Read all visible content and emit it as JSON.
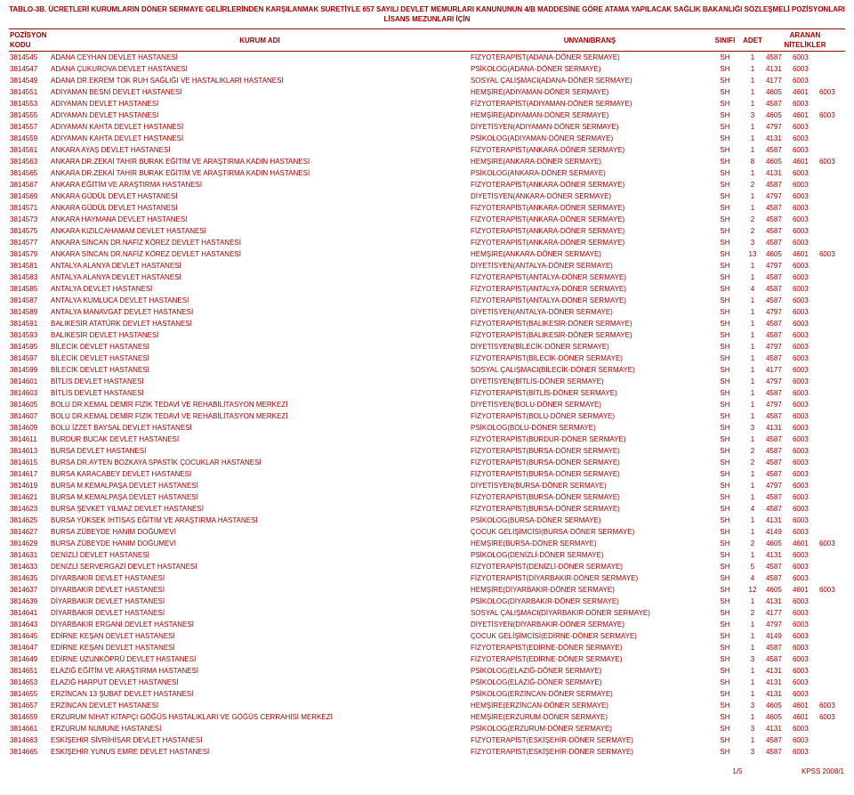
{
  "title": "TABLO-3B. ÜCRETLERİ KURUMLARIN DÖNER SERMAYE GELİRLERİNDEN KARŞILANMAK SURETİYLE 657 SAYILI DEVLET MEMURLARI KANUNUNUN 4/B MADDESİNE GÖRE ATAMA YAPILACAK SAĞLIK BAKANLIĞI SÖZLEŞMELİ POZİSYONLARI",
  "subtitle": "LİSANS MEZUNLARI İÇİN",
  "headers": {
    "kod1": "POZİSYON",
    "kod2": "KODU",
    "kurum": "KURUM ADI",
    "unvan": "UNVAN/BRANŞ",
    "sinif": "SINIFI",
    "adet": "ADET",
    "nitelik1": "ARANAN",
    "nitelik2": "NİTELİKLER"
  },
  "footer": {
    "page": "1/5",
    "kpss": "KPSS 2008/1"
  },
  "rows": [
    [
      "3814545",
      "ADANA CEYHAN DEVLET HASTANESİ",
      "FİZYOTERAPİST(ADANA-DÖNER SERMAYE)",
      "SH",
      "1",
      "4587",
      "6003",
      ""
    ],
    [
      "3814547",
      "ADANA ÇUKUROVA DEVLET HASTANESİ",
      "PSİKOLOG(ADANA-DÖNER SERMAYE)",
      "SH",
      "1",
      "4131",
      "6003",
      ""
    ],
    [
      "3814549",
      "ADANA DR.EKREM TOK RUH SAĞLIĞI VE HASTALIKLARI HASTANESİ",
      "SOSYAL ÇALIŞMACI(ADANA-DÖNER SERMAYE)",
      "SH",
      "1",
      "4177",
      "6003",
      ""
    ],
    [
      "3814551",
      "ADIYAMAN BESNİ DEVLET HASTANESİ",
      "HEMŞİRE(ADIYAMAN-DÖNER SERMAYE)",
      "SH",
      "1",
      "4605",
      "4601",
      "6003"
    ],
    [
      "3814553",
      "ADIYAMAN DEVLET HASTANESİ",
      "FİZYOTERAPİST(ADIYAMAN-DÖNER SERMAYE)",
      "SH",
      "1",
      "4587",
      "6003",
      ""
    ],
    [
      "3814555",
      "ADIYAMAN DEVLET HASTANESİ",
      "HEMŞİRE(ADIYAMAN-DÖNER SERMAYE)",
      "SH",
      "3",
      "4605",
      "4601",
      "6003"
    ],
    [
      "3814557",
      "ADIYAMAN KAHTA DEVLET HASTANESİ",
      "DİYETİSYEN(ADIYAMAN-DÖNER SERMAYE)",
      "SH",
      "1",
      "4797",
      "6003",
      ""
    ],
    [
      "3814559",
      "ADIYAMAN KAHTA DEVLET HASTANESİ",
      "PSİKOLOG(ADIYAMAN-DÖNER SERMAYE)",
      "SH",
      "1",
      "4131",
      "6003",
      ""
    ],
    [
      "3814561",
      "ANKARA AYAŞ DEVLET HASTANESİ",
      "FİZYOTERAPİST(ANKARA-DÖNER SERMAYE)",
      "SH",
      "1",
      "4587",
      "6003",
      ""
    ],
    [
      "3814563",
      "ANKARA DR.ZEKAİ TAHİR BURAK EĞİTİM VE ARAŞTIRMA KADIN HASTANESİ",
      "HEMŞİRE(ANKARA-DÖNER SERMAYE)",
      "SH",
      "8",
      "4605",
      "4601",
      "6003"
    ],
    [
      "3814565",
      "ANKARA DR.ZEKAİ TAHİR BURAK EĞİTİM VE ARAŞTIRMA KADIN HASTANESİ",
      "PSİKOLOG(ANKARA-DÖNER SERMAYE)",
      "SH",
      "1",
      "4131",
      "6003",
      ""
    ],
    [
      "3814567",
      "ANKARA EĞİTİM VE ARAŞTIRMA HASTANESİ",
      "FİZYOTERAPİST(ANKARA-DÖNER SERMAYE)",
      "SH",
      "2",
      "4587",
      "6003",
      ""
    ],
    [
      "3814569",
      "ANKARA GÜDÜL DEVLET HASTANESİ",
      "DİYETİSYEN(ANKARA-DÖNER SERMAYE)",
      "SH",
      "1",
      "4797",
      "6003",
      ""
    ],
    [
      "3814571",
      "ANKARA GÜDÜL DEVLET HASTANESİ",
      "FİZYOTERAPİST(ANKARA-DÖNER SERMAYE)",
      "SH",
      "1",
      "4587",
      "6003",
      ""
    ],
    [
      "3814573",
      "ANKARA HAYMANA DEVLET HASTANESİ",
      "FİZYOTERAPİST(ANKARA-DÖNER SERMAYE)",
      "SH",
      "2",
      "4587",
      "6003",
      ""
    ],
    [
      "3814575",
      "ANKARA KIZILCAHAMAM DEVLET HASTANESİ",
      "FİZYOTERAPİST(ANKARA-DÖNER SERMAYE)",
      "SH",
      "2",
      "4587",
      "6003",
      ""
    ],
    [
      "3814577",
      "ANKARA SİNCAN DR.NAFİZ KÖREZ DEVLET HASTANESİ",
      "FİZYOTERAPİST(ANKARA-DÖNER SERMAYE)",
      "SH",
      "3",
      "4587",
      "6003",
      ""
    ],
    [
      "3814579",
      "ANKARA SİNCAN DR.NAFİZ KÖREZ DEVLET HASTANESİ",
      "HEMŞİRE(ANKARA-DÖNER SERMAYE)",
      "SH",
      "13",
      "4605",
      "4601",
      "6003"
    ],
    [
      "3814581",
      "ANTALYA ALANYA DEVLET HASTANESİ",
      "DİYETİSYEN(ANTALYA-DÖNER SERMAYE)",
      "SH",
      "1",
      "4797",
      "6003",
      ""
    ],
    [
      "3814583",
      "ANTALYA ALANYA DEVLET HASTANESİ",
      "FİZYOTERAPİST(ANTALYA-DÖNER SERMAYE)",
      "SH",
      "1",
      "4587",
      "6003",
      ""
    ],
    [
      "3814585",
      "ANTALYA DEVLET HASTANESİ",
      "FİZYOTERAPİST(ANTALYA-DÖNER SERMAYE)",
      "SH",
      "4",
      "4587",
      "6003",
      ""
    ],
    [
      "3814587",
      "ANTALYA KUMLUCA DEVLET HASTANESİ",
      "FİZYOTERAPİST(ANTALYA-DÖNER SERMAYE)",
      "SH",
      "1",
      "4587",
      "6003",
      ""
    ],
    [
      "3814589",
      "ANTALYA MANAVGAT DEVLET HASTANESİ",
      "DİYETİSYEN(ANTALYA-DÖNER SERMAYE)",
      "SH",
      "1",
      "4797",
      "6003",
      ""
    ],
    [
      "3814591",
      "BALIKESİR ATATÜRK DEVLET HASTANESİ",
      "FİZYOTERAPİST(BALIKESİR-DÖNER SERMAYE)",
      "SH",
      "1",
      "4587",
      "6003",
      ""
    ],
    [
      "3814593",
      "BALIKESİR DEVLET HASTANESİ",
      "FİZYOTERAPİST(BALIKESİR-DÖNER SERMAYE)",
      "SH",
      "1",
      "4587",
      "6003",
      ""
    ],
    [
      "3814595",
      "BİLECİK DEVLET HASTANESİ",
      "DİYETİSYEN(BİLECİK-DÖNER SERMAYE)",
      "SH",
      "1",
      "4797",
      "6003",
      ""
    ],
    [
      "3814597",
      "BİLECİK DEVLET HASTANESİ",
      "FİZYOTERAPİST(BİLECİK-DÖNER SERMAYE)",
      "SH",
      "1",
      "4587",
      "6003",
      ""
    ],
    [
      "3814599",
      "BİLECİK DEVLET HASTANESİ",
      "SOSYAL ÇALIŞMACI(BİLECİK-DÖNER SERMAYE)",
      "SH",
      "1",
      "4177",
      "6003",
      ""
    ],
    [
      "3814601",
      "BİTLİS DEVLET HASTANESİ",
      "DİYETİSYEN(BİTLİS-DÖNER SERMAYE)",
      "SH",
      "1",
      "4797",
      "6003",
      ""
    ],
    [
      "3814603",
      "BİTLİS DEVLET HASTANESİ",
      "FİZYOTERAPİST(BİTLİS-DÖNER SERMAYE)",
      "SH",
      "1",
      "4587",
      "6003",
      ""
    ],
    [
      "3814605",
      "BOLU DR.KEMAL DEMİR FİZİK TEDAVİ VE REHABİLİTASYON MERKEZİ",
      "DİYETİSYEN(BOLU-DÖNER SERMAYE)",
      "SH",
      "1",
      "4797",
      "6003",
      ""
    ],
    [
      "3814607",
      "BOLU DR.KEMAL DEMİR FİZİK TEDAVİ VE REHABİLİTASYON MERKEZİ",
      "FİZYOTERAPİST(BOLU-DÖNER SERMAYE)",
      "SH",
      "1",
      "4587",
      "6003",
      ""
    ],
    [
      "3814609",
      "BOLU İZZET BAYSAL DEVLET HASTANESİ",
      "PSİKOLOG(BOLU-DÖNER SERMAYE)",
      "SH",
      "3",
      "4131",
      "6003",
      ""
    ],
    [
      "3814611",
      "BURDUR BUCAK DEVLET HASTANESİ",
      "FİZYOTERAPİST(BURDUR-DÖNER SERMAYE)",
      "SH",
      "1",
      "4587",
      "6003",
      ""
    ],
    [
      "3814613",
      "BURSA DEVLET HASTANESİ",
      "FİZYOTERAPİST(BURSA-DÖNER SERMAYE)",
      "SH",
      "2",
      "4587",
      "6003",
      ""
    ],
    [
      "3814615",
      "BURSA DR.AYTEN BOZKAYA SPASTİK ÇOCUKLAR HASTANESİ",
      "FİZYOTERAPİST(BURSA-DÖNER SERMAYE)",
      "SH",
      "2",
      "4587",
      "6003",
      ""
    ],
    [
      "3814617",
      "BURSA KARACABEY DEVLET HASTANESİ",
      "FİZYOTERAPİST(BURSA-DÖNER SERMAYE)",
      "SH",
      "1",
      "4587",
      "6003",
      ""
    ],
    [
      "3814619",
      "BURSA M.KEMALPAŞA DEVLET HASTANESİ",
      "DİYETİSYEN(BURSA-DÖNER SERMAYE)",
      "SH",
      "1",
      "4797",
      "6003",
      ""
    ],
    [
      "3814621",
      "BURSA M.KEMALPAŞA DEVLET HASTANESİ",
      "FİZYOTERAPİST(BURSA-DÖNER SERMAYE)",
      "SH",
      "1",
      "4587",
      "6003",
      ""
    ],
    [
      "3814623",
      "BURSA ŞEVKET YILMAZ DEVLET HASTANESİ",
      "FİZYOTERAPİST(BURSA-DÖNER SERMAYE)",
      "SH",
      "4",
      "4587",
      "6003",
      ""
    ],
    [
      "3814625",
      "BURSA YÜKSEK İHTİSAS EĞİTİM VE ARAŞTIRMA HASTANESİ",
      "PSİKOLOG(BURSA-DÖNER SERMAYE)",
      "SH",
      "1",
      "4131",
      "6003",
      ""
    ],
    [
      "3814627",
      "BURSA ZÜBEYDE HANIM DOĞUMEVİ",
      "ÇOCUK GELİŞİMCİSİ(BURSA-DÖNER SERMAYE)",
      "SH",
      "1",
      "4149",
      "6003",
      ""
    ],
    [
      "3814629",
      "BURSA ZÜBEYDE HANIM DOĞUMEVİ",
      "HEMŞİRE(BURSA-DÖNER SERMAYE)",
      "SH",
      "2",
      "4605",
      "4601",
      "6003"
    ],
    [
      "3814631",
      "DENİZLİ DEVLET HASTANESİ",
      "PSİKOLOG(DENİZLİ-DÖNER SERMAYE)",
      "SH",
      "1",
      "4131",
      "6003",
      ""
    ],
    [
      "3814633",
      "DENİZLİ SERVERGAZİ DEVLET HASTANESİ",
      "FİZYOTERAPİST(DENİZLİ-DÖNER SERMAYE)",
      "SH",
      "5",
      "4587",
      "6003",
      ""
    ],
    [
      "3814635",
      "DİYARBAKIR DEVLET HASTANESİ",
      "FİZYOTERAPİST(DİYARBAKIR-DÖNER SERMAYE)",
      "SH",
      "4",
      "4587",
      "6003",
      ""
    ],
    [
      "3814637",
      "DİYARBAKIR DEVLET HASTANESİ",
      "HEMŞİRE(DİYARBAKIR-DÖNER SERMAYE)",
      "SH",
      "12",
      "4605",
      "4601",
      "6003"
    ],
    [
      "3814639",
      "DİYARBAKIR DEVLET HASTANESİ",
      "PSİKOLOG(DİYARBAKIR-DÖNER SERMAYE)",
      "SH",
      "1",
      "4131",
      "6003",
      ""
    ],
    [
      "3814641",
      "DİYARBAKIR DEVLET HASTANESİ",
      "SOSYAL ÇALIŞMACI(DİYARBAKIR-DÖNER SERMAYE)",
      "SH",
      "2",
      "4177",
      "6003",
      ""
    ],
    [
      "3814643",
      "DİYARBAKIR ERGANİ DEVLET HASTANESİ",
      "DİYETİSYEN(DİYARBAKIR-DÖNER SERMAYE)",
      "SH",
      "1",
      "4797",
      "6003",
      ""
    ],
    [
      "3814645",
      "EDİRNE KEŞAN DEVLET HASTANESİ",
      "ÇOCUK GELİŞİMCİSİ(EDİRNE-DÖNER SERMAYE)",
      "SH",
      "1",
      "4149",
      "6003",
      ""
    ],
    [
      "3814647",
      "EDİRNE KEŞAN DEVLET HASTANESİ",
      "FİZYOTERAPİST(EDİRNE-DÖNER SERMAYE)",
      "SH",
      "1",
      "4587",
      "6003",
      ""
    ],
    [
      "3814649",
      "EDİRNE UZUNKÖPRÜ DEVLET HASTANESİ",
      "FİZYOTERAPİST(EDİRNE-DÖNER SERMAYE)",
      "SH",
      "3",
      "4587",
      "6003",
      ""
    ],
    [
      "3814651",
      "ELAZIĞ EĞİTİM VE ARAŞTIRMA HASTANESİ",
      "PSİKOLOG(ELAZIĞ-DÖNER SERMAYE)",
      "SH",
      "1",
      "4131",
      "6003",
      ""
    ],
    [
      "3814653",
      "ELAZIĞ HARPUT DEVLET HASTANESİ",
      "PSİKOLOG(ELAZIĞ-DÖNER SERMAYE)",
      "SH",
      "1",
      "4131",
      "6003",
      ""
    ],
    [
      "3814655",
      "ERZİNCAN 13 ŞUBAT DEVLET HASTANESİ",
      "PSİKOLOG(ERZİNCAN-DÖNER SERMAYE)",
      "SH",
      "1",
      "4131",
      "6003",
      ""
    ],
    [
      "3814657",
      "ERZİNCAN DEVLET HASTANESİ",
      "HEMŞİRE(ERZİNCAN-DÖNER SERMAYE)",
      "SH",
      "3",
      "4605",
      "4601",
      "6003"
    ],
    [
      "3814659",
      "ERZURUM NİHAT KİTAPÇI GÖĞÜS HASTALIKLARI VE GÖĞÜS CERRAHİSİ MERKEZİ",
      "HEMŞİRE(ERZURUM-DÖNER SERMAYE)",
      "SH",
      "1",
      "4605",
      "4601",
      "6003"
    ],
    [
      "3814661",
      "ERZURUM NUMUNE HASTANESİ",
      "PSİKOLOG(ERZURUM-DÖNER SERMAYE)",
      "SH",
      "3",
      "4131",
      "6003",
      ""
    ],
    [
      "3814663",
      "ESKİŞEHİR SİVRİHİSAR DEVLET HASTANESİ",
      "FİZYOTERAPİST(ESKİŞEHİR-DÖNER SERMAYE)",
      "SH",
      "1",
      "4587",
      "6003",
      ""
    ],
    [
      "3814665",
      "ESKİŞEHİR YUNUS EMRE DEVLET HASTANESİ",
      "FİZYOTERAPİST(ESKİŞEHİR-DÖNER SERMAYE)",
      "SH",
      "3",
      "4587",
      "6003",
      ""
    ]
  ]
}
